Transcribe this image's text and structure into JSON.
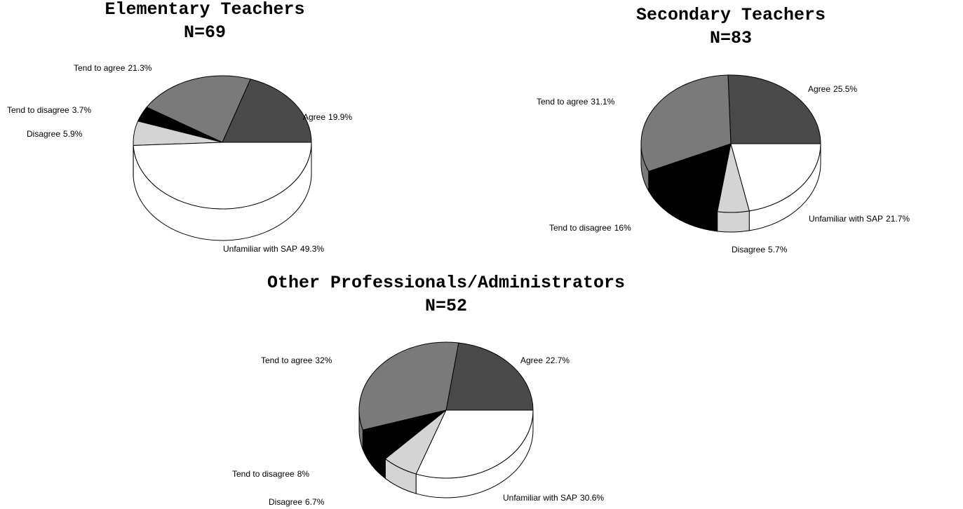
{
  "chart_data": [
    {
      "type": "pie",
      "title": "Elementary Teachers",
      "subtitle": "N=69",
      "categories": [
        "Agree",
        "Tend to agree",
        "Tend to disagree",
        "Disagree",
        "Unfamiliar with SAP"
      ],
      "values": [
        19.9,
        21.3,
        3.7,
        5.9,
        49.3
      ],
      "value_labels": [
        "19.9%",
        "21.3%",
        "3.7%",
        "5.9%",
        "49.3%"
      ],
      "colors": [
        "#4a4a4a",
        "#7a7a7a",
        "#000000",
        "#d4d4d4",
        "#ffffff"
      ]
    },
    {
      "type": "pie",
      "title": "Secondary Teachers",
      "subtitle": "N=83",
      "categories": [
        "Agree",
        "Tend to agree",
        "Tend to disagree",
        "Disagree",
        "Unfamiliar with SAP"
      ],
      "values": [
        25.5,
        31.1,
        16,
        5.7,
        21.7
      ],
      "value_labels": [
        "25.5%",
        "31.1%",
        "16%",
        "5.7%",
        "21.7%"
      ],
      "colors": [
        "#4a4a4a",
        "#7a7a7a",
        "#000000",
        "#d4d4d4",
        "#ffffff"
      ]
    },
    {
      "type": "pie",
      "title": "Other Professionals/Administrators",
      "subtitle": "N=52",
      "categories": [
        "Agree",
        "Tend to agree",
        "Tend to disagree",
        "Disagree",
        "Unfamiliar with SAP"
      ],
      "values": [
        22.7,
        32,
        8,
        6.7,
        30.6
      ],
      "value_labels": [
        "22.7%",
        "32%",
        "8%",
        "6.7%",
        "30.6%"
      ],
      "colors": [
        "#4a4a4a",
        "#7a7a7a",
        "#000000",
        "#d4d4d4",
        "#ffffff"
      ]
    }
  ]
}
